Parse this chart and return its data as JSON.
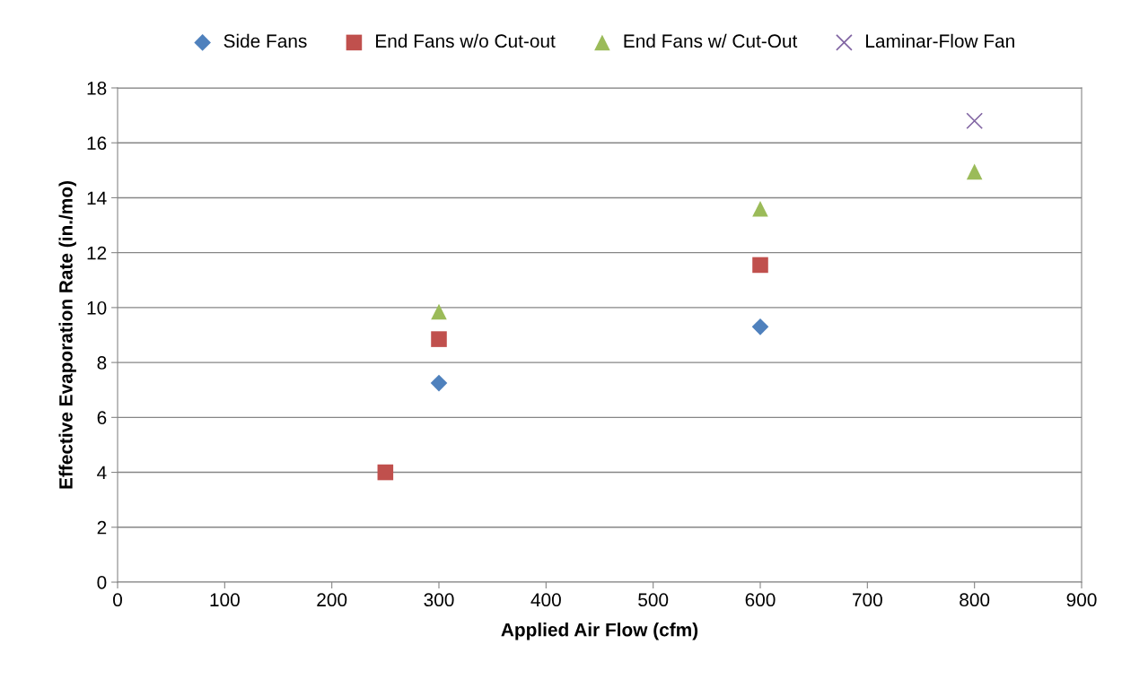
{
  "chart_data": {
    "type": "scatter",
    "xlabel": "Applied Air Flow (cfm)",
    "ylabel": "Effective Evaporation Rate (in./mo)",
    "xlim": [
      0,
      900
    ],
    "xticks": [
      0,
      100,
      200,
      300,
      400,
      500,
      600,
      700,
      800,
      900
    ],
    "ylim": [
      0,
      18
    ],
    "yticks": [
      0,
      2,
      4,
      6,
      8,
      10,
      12,
      14,
      16,
      18
    ],
    "grid": "y",
    "legend": "top",
    "series": [
      {
        "name": "Side Fans",
        "color": "#4f81bd",
        "marker": "diamond",
        "x": [
          300,
          600
        ],
        "values": [
          7.25,
          9.3
        ]
      },
      {
        "name": "End Fans w/o Cut-out",
        "color": "#c0504d",
        "marker": "square",
        "x": [
          250,
          300,
          600
        ],
        "values": [
          4.0,
          8.85,
          11.55
        ]
      },
      {
        "name": "End Fans w/ Cut-Out",
        "color": "#9bbb59",
        "marker": "triangle",
        "x": [
          300,
          600,
          800
        ],
        "values": [
          9.85,
          13.6,
          14.95
        ]
      },
      {
        "name": "Laminar-Flow Fan",
        "color": "#8064a2",
        "marker": "cross",
        "x": [
          800
        ],
        "values": [
          16.8
        ]
      }
    ]
  }
}
